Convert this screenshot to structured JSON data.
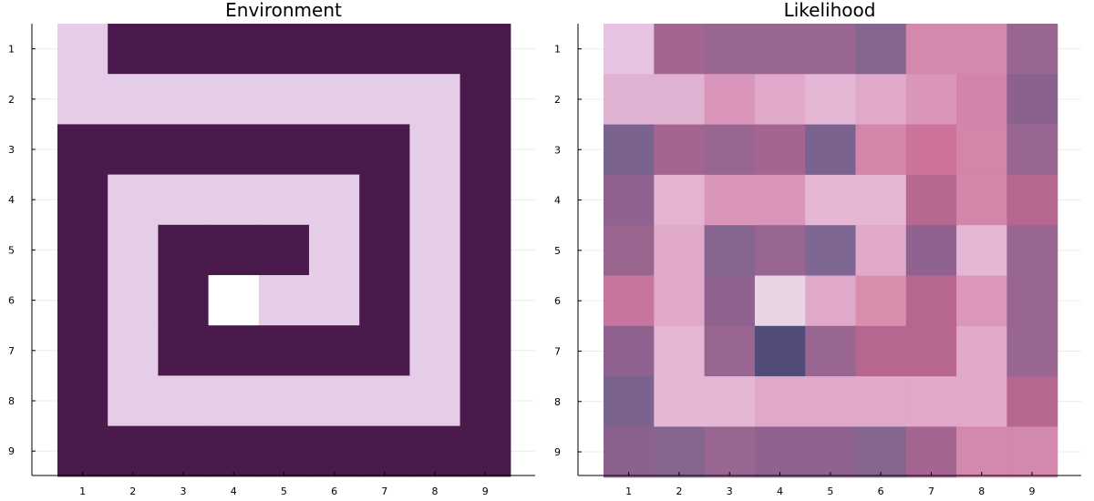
{
  "chart_data": [
    {
      "type": "heatmap",
      "title": "Environment",
      "x_ticks": [
        "1",
        "2",
        "3",
        "4",
        "5",
        "6",
        "7",
        "8",
        "9"
      ],
      "y_ticks": [
        "1",
        "2",
        "3",
        "4",
        "5",
        "6",
        "7",
        "8",
        "9"
      ],
      "xlim": [
        0.5,
        9.5
      ],
      "ylim": [
        0.5,
        9.5
      ],
      "y_inverted": true,
      "grid": true,
      "legend": "none",
      "palette": {
        "wall": "#4a1a4c",
        "path": "#e6cde7",
        "goal": "#ffffff"
      },
      "cell_legend": {
        "0": "wall",
        "1": "path",
        "2": "goal"
      },
      "cells": [
        [
          1,
          0,
          0,
          0,
          0,
          0,
          0,
          0,
          0
        ],
        [
          1,
          1,
          1,
          1,
          1,
          1,
          1,
          1,
          0
        ],
        [
          0,
          0,
          0,
          0,
          0,
          0,
          0,
          1,
          0
        ],
        [
          0,
          1,
          1,
          1,
          1,
          1,
          0,
          1,
          0
        ],
        [
          0,
          1,
          0,
          0,
          0,
          1,
          0,
          1,
          0
        ],
        [
          0,
          1,
          0,
          2,
          1,
          1,
          0,
          1,
          0
        ],
        [
          0,
          1,
          0,
          0,
          0,
          0,
          0,
          1,
          0
        ],
        [
          0,
          1,
          1,
          1,
          1,
          1,
          1,
          1,
          0
        ],
        [
          0,
          0,
          0,
          0,
          0,
          0,
          0,
          0,
          0
        ]
      ]
    },
    {
      "type": "heatmap",
      "title": "Likelihood",
      "x_ticks": [
        "1",
        "2",
        "3",
        "4",
        "5",
        "6",
        "7",
        "8",
        "9"
      ],
      "y_ticks": [
        "1",
        "2",
        "3",
        "4",
        "5",
        "6",
        "7",
        "8",
        "9"
      ],
      "xlim": [
        0.5,
        9.5
      ],
      "ylim": [
        0.5,
        9.5
      ],
      "y_inverted": true,
      "grid": true,
      "legend": "none",
      "cell_colors": [
        [
          "#e6c3e1",
          "#a46690",
          "#996691",
          "#996691",
          "#996691",
          "#84668f",
          "#d388ad",
          "#d388ad",
          "#996691"
        ],
        [
          "#e0b2d2",
          "#e0b2d2",
          "#d996ba",
          "#e0a9c9",
          "#e6b6d5",
          "#e0a9c9",
          "#d996ba",
          "#d383aa",
          "#8b628d"
        ],
        [
          "#7a638f",
          "#a46690",
          "#996691",
          "#a46690",
          "#7a638f",
          "#d385aa",
          "#cc729b",
          "#d385aa",
          "#996691"
        ],
        [
          "#8f628f",
          "#e6b2d2",
          "#d996ba",
          "#d996ba",
          "#e6b6d5",
          "#e6b6d5",
          "#b76890",
          "#d385aa",
          "#b7668f"
        ],
        [
          "#9a668f",
          "#e0a9c9",
          "#84668f",
          "#996691",
          "#7f6793",
          "#e0a9c9",
          "#8f628f",
          "#e6b6d5",
          "#996691"
        ],
        [
          "#c7749e",
          "#e0a9c9",
          "#8f628f",
          "#e9d4e6",
          "#e0a9c9",
          "#d98ead",
          "#b7668f",
          "#dd96bb",
          "#996691"
        ],
        [
          "#8f628f",
          "#e6b6d5",
          "#996691",
          "#504b77",
          "#996691",
          "#b7668f",
          "#b7668f",
          "#e0a9c9",
          "#996691"
        ],
        [
          "#7a638f",
          "#e6b6d5",
          "#e6b6d5",
          "#e0a9c9",
          "#e0a9c9",
          "#e0a9c9",
          "#e0a9c9",
          "#e0a9c9",
          "#b7668f"
        ],
        [
          "#8b628d",
          "#84668f",
          "#996691",
          "#8f628f",
          "#8f628f",
          "#84668f",
          "#a46690",
          "#d388ad",
          "#d388ad"
        ]
      ]
    }
  ]
}
